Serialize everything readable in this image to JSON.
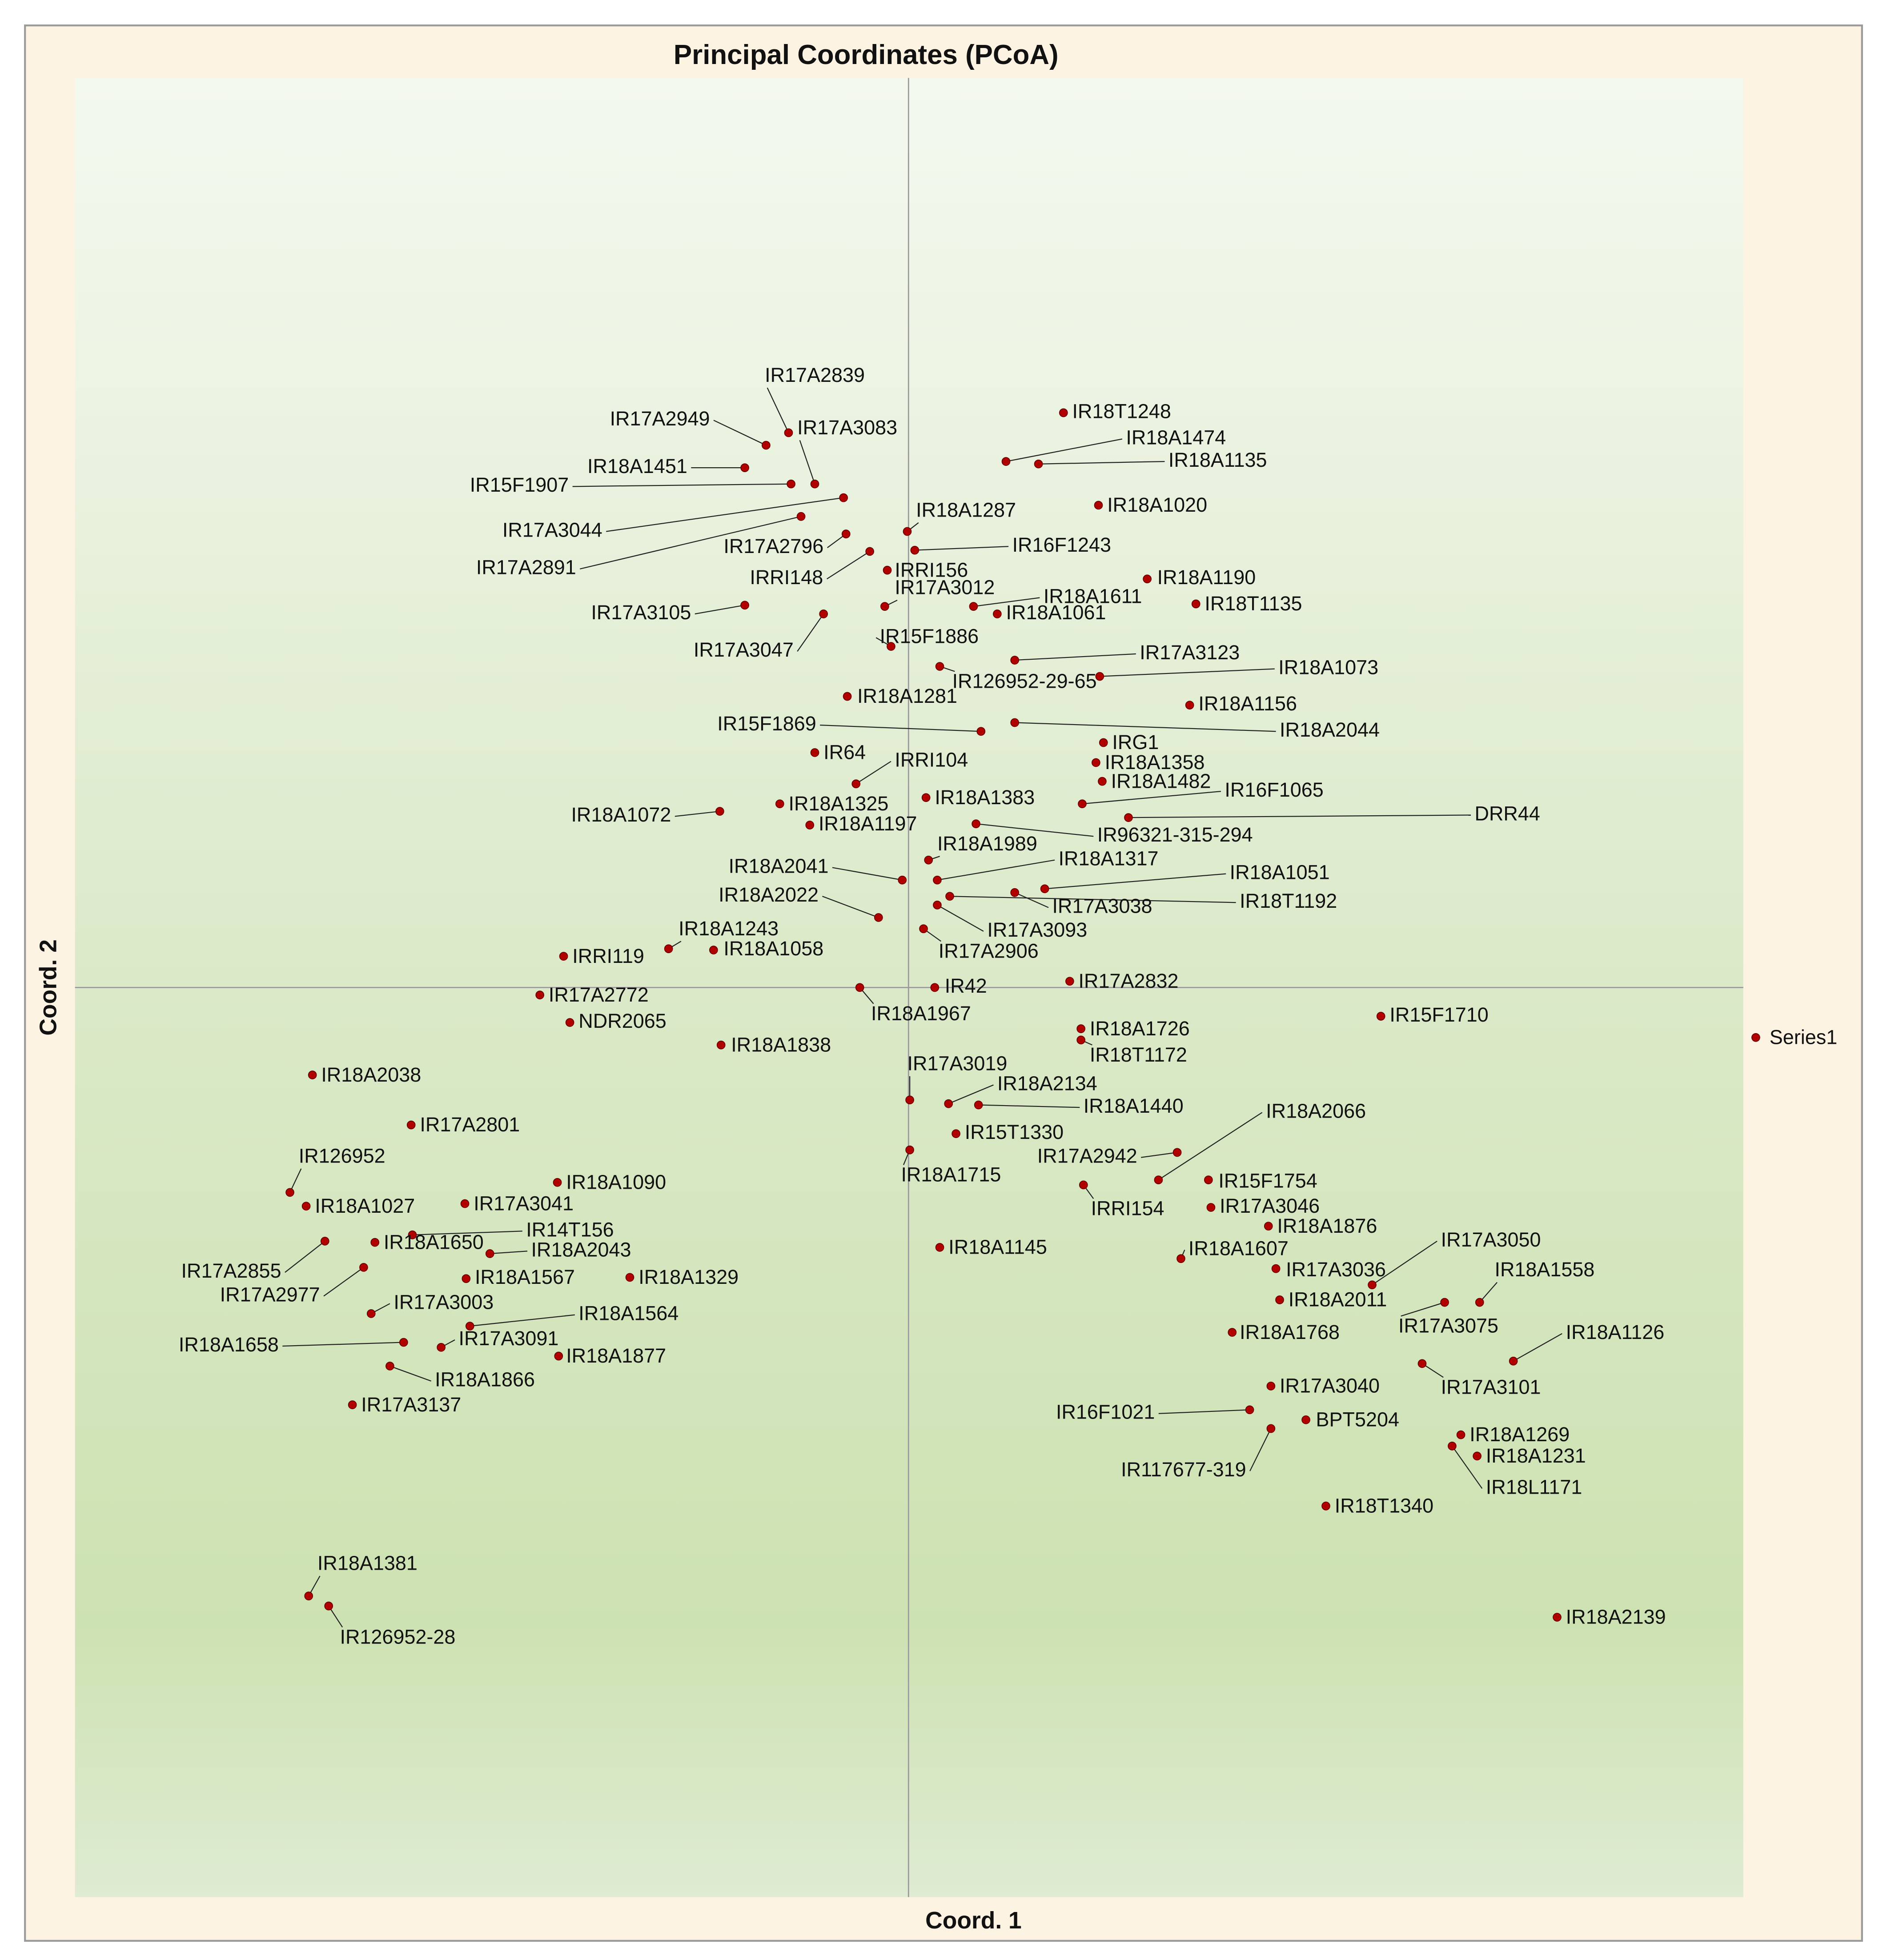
{
  "chart_data": {
    "type": "scatter",
    "title": "Principal Coordinates (PCoA)",
    "x_label": "Coord. 1",
    "y_label": "Coord. 2",
    "xlim": [
      -6.67,
      6.68
    ],
    "ylim": [
      -7.28,
      7.28
    ],
    "legend": "right",
    "series": [
      {
        "name": "Series1",
        "color": "#b00000",
        "labels": [
          "IR17A2839",
          "IR17A2949",
          "IR17A3083",
          "IR18A1451",
          "IR15F1907",
          "IR17A3044",
          "IR17A2891",
          "IR17A2796",
          "IRRI148",
          "IRRI156",
          "IR17A3012",
          "IR17A3105",
          "IR17A3047",
          "IR18A1287",
          "IR16F1243",
          "IR15F1886",
          "IR18T1248",
          "IR18A1474",
          "IR18A1135",
          "IR18A1020",
          "IR18A1190",
          "IR18A1611",
          "IR18A1061",
          "IR18T1135",
          "IR17A3123",
          "IR18A1073",
          "IR126952-29-65",
          "IR18A1281",
          "IR18A1156",
          "IR15F1869",
          "IR18A2044",
          "IR64",
          "IRRI104",
          "IRG1",
          "IR18A1358",
          "IR18A1482",
          "IR16F1065",
          "IR18A1325",
          "IR18A1383",
          "IR18A1072",
          "IR18A1197",
          "DRR44",
          "IR96321-315-294",
          "IR18A1989",
          "IR18A1317",
          "IR18A2041",
          "IR18A1051",
          "IR18T1192",
          "IR17A3038",
          "IR18A2022",
          "IR17A3093",
          "IR17A2906",
          "IR18A1243",
          "IR18A1058",
          "IRRI119",
          "IR17A2772",
          "IR42",
          "IR18A1967",
          "IR17A2832",
          "IR15F1710",
          "NDR2065",
          "IR18A1838",
          "IR18A1726",
          "IR18T1172",
          "IR18A2038",
          "IR17A3019",
          "IR18A2134",
          "IR18A1440",
          "IR18A2066",
          "IR17A2801",
          "IR15T1330",
          "IR17A2942",
          "IR18A1715",
          "IR126952",
          "IR18A1090",
          "IRRI154",
          "IR15F1754",
          "IR18A1027",
          "IR17A3041",
          "IR17A3046",
          "IR18A1876",
          "IR14T156",
          "IR18A1650",
          "IR18A2043",
          "IR18A1145",
          "IR18A1607",
          "IR17A3050",
          "IR17A2855",
          "IR17A2977",
          "IR18A1567",
          "IR18A1329",
          "IR17A3036",
          "IR18A1558",
          "IR17A3003",
          "IR18A2011",
          "IR17A3075",
          "IR18A1564",
          "IR18A1126",
          "IR18A1768",
          "IR18A1658",
          "IR17A3091",
          "IR18A1877",
          "IR18A1866",
          "IR17A3101",
          "IR17A3040",
          "IR17A3137",
          "IR16F1021",
          "BPT5204",
          "IR117677-319",
          "IR18A1269",
          "IR18A1231",
          "IR18L1171",
          "IR18T1340",
          "IR18A1381",
          "IR126952-28",
          "IR18A2139"
        ],
        "x": [
          -0.96,
          -1.14,
          -0.75,
          -1.31,
          -0.94,
          -0.52,
          -0.86,
          -0.5,
          -0.31,
          -0.17,
          -0.19,
          -1.31,
          -0.68,
          -0.01,
          0.05,
          -0.14,
          1.24,
          0.78,
          1.04,
          1.52,
          1.91,
          0.52,
          0.71,
          2.3,
          0.85,
          1.53,
          0.25,
          -0.49,
          2.25,
          0.58,
          0.85,
          -0.75,
          -0.42,
          1.56,
          1.5,
          1.55,
          1.39,
          -1.03,
          0.14,
          -1.51,
          -0.79,
          1.76,
          0.54,
          0.16,
          0.23,
          -0.05,
          1.09,
          0.33,
          0.85,
          -0.24,
          0.23,
          0.12,
          -1.92,
          -1.56,
          -2.76,
          -2.95,
          0.21,
          -0.39,
          1.29,
          3.78,
          -2.71,
          -1.5,
          1.38,
          1.38,
          -4.77,
          0.01,
          0.32,
          0.56,
          2.0,
          -3.98,
          0.38,
          2.15,
          0.01,
          -4.95,
          -2.81,
          1.4,
          2.4,
          -4.82,
          -3.55,
          2.42,
          2.88,
          -3.97,
          -4.27,
          -3.35,
          0.25,
          2.18,
          3.71,
          -4.67,
          -4.36,
          -3.54,
          -2.23,
          2.94,
          4.57,
          -4.3,
          2.97,
          4.29,
          -3.51,
          4.84,
          2.59,
          -4.04,
          -3.74,
          -2.8,
          -4.15,
          4.11,
          2.9,
          -4.45,
          2.73,
          3.18,
          2.9,
          4.42,
          4.55,
          4.35,
          3.34,
          -4.8,
          -4.64,
          5.19
        ],
        "y": [
          4.44,
          4.34,
          4.03,
          4.16,
          4.03,
          3.92,
          3.77,
          3.63,
          3.49,
          3.34,
          3.05,
          3.06,
          2.99,
          3.65,
          3.5,
          2.73,
          4.6,
          4.21,
          4.19,
          3.86,
          3.27,
          3.05,
          2.99,
          3.07,
          2.62,
          2.49,
          2.57,
          2.33,
          2.26,
          2.05,
          2.12,
          1.88,
          1.63,
          1.96,
          1.8,
          1.65,
          1.47,
          1.47,
          1.52,
          1.41,
          1.3,
          1.36,
          1.31,
          1.02,
          0.86,
          0.86,
          0.79,
          0.73,
          0.76,
          0.56,
          0.66,
          0.47,
          0.31,
          0.3,
          0.25,
          -0.06,
          0,
          0,
          0.05,
          -0.23,
          -0.28,
          -0.46,
          -0.33,
          -0.42,
          -0.7,
          -0.9,
          -0.93,
          -0.94,
          -1.54,
          -1.1,
          -1.17,
          -1.32,
          -1.3,
          -1.64,
          -1.56,
          -1.58,
          -1.54,
          -1.75,
          -1.73,
          -1.76,
          -1.91,
          -1.98,
          -2.04,
          -2.13,
          -2.08,
          -2.17,
          -2.38,
          -2.03,
          -2.24,
          -2.33,
          -2.32,
          -2.25,
          -2.52,
          -2.61,
          -2.5,
          -2.52,
          -2.71,
          -2.99,
          -2.76,
          -2.84,
          -2.88,
          -2.95,
          -3.03,
          -3.01,
          -3.19,
          -3.34,
          -3.38,
          -3.46,
          -3.53,
          -3.58,
          -3.75,
          -3.67,
          -4.15,
          -4.87,
          -4.95,
          -5.04
        ]
      }
    ]
  }
}
